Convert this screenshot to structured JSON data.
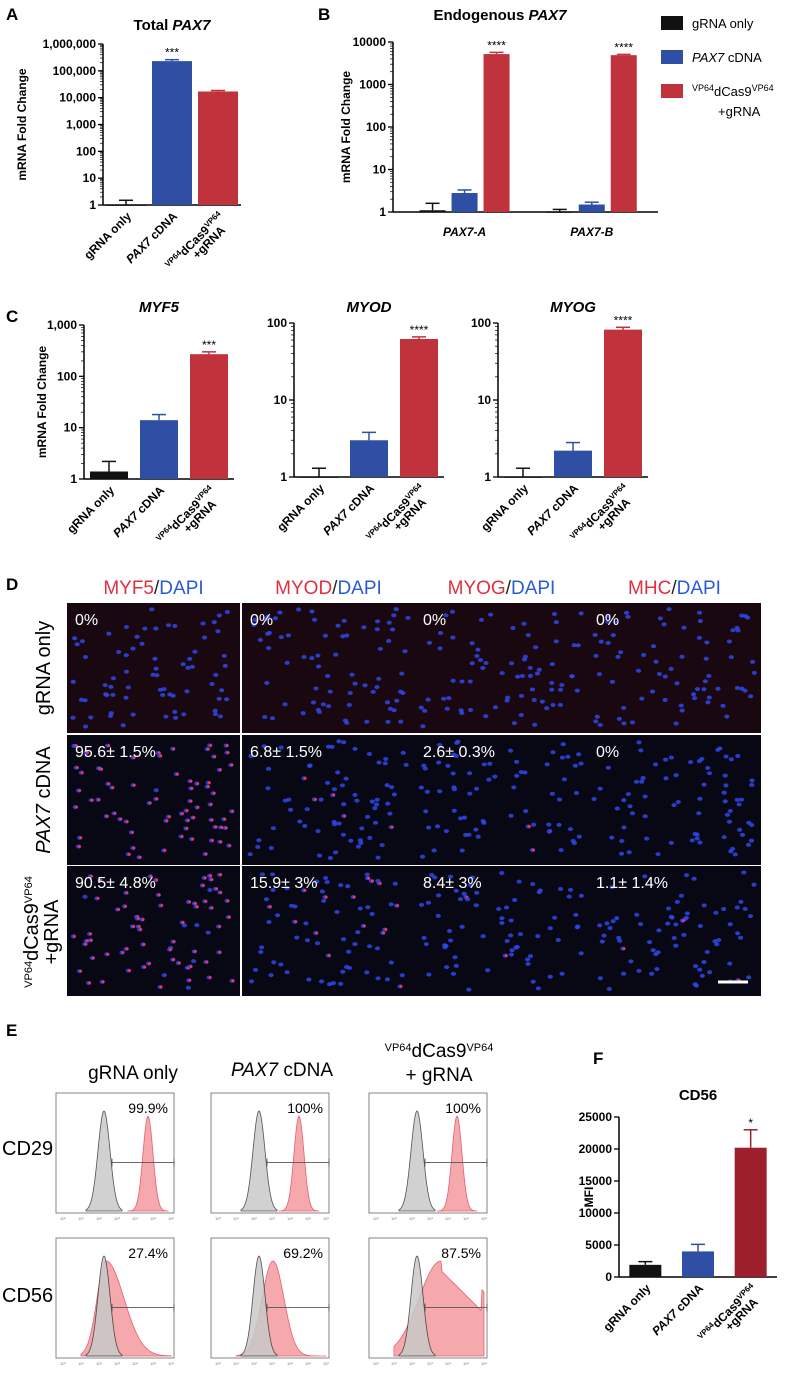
{
  "panel_labels": {
    "a": "A",
    "b": "B",
    "c": "C",
    "d": "D",
    "e": "E",
    "f": "F"
  },
  "legend": {
    "items": [
      {
        "label": "gRNA only",
        "color": "#111111"
      },
      {
        "label": "PAX7 cDNA",
        "color": "#2e4fa3"
      },
      {
        "label": "VP64dCas9VP64 +gRNA",
        "color": "#c0333c"
      }
    ]
  },
  "groups": [
    "gRNA only",
    "PAX7 cDNA",
    "VP64dCas9VP64 +gRNA"
  ],
  "colors": {
    "grna": "#111111",
    "cdna": "#2e4fa3",
    "vp64": "#c0333c",
    "vp64_dark": "#9e1f2c",
    "micro_red": "#e03040",
    "micro_blue": "#2a5bd7"
  },
  "chart_data": [
    {
      "id": "A",
      "type": "bar",
      "title": "Total PAX7",
      "ylabel": "mRNA Fold Change",
      "yscale": "log",
      "ylim": [
        1,
        1000000
      ],
      "yticks": [
        "1",
        "10",
        "100",
        "1,000",
        "10,000",
        "100,000",
        "1,000,000"
      ],
      "categories": [
        "gRNA only",
        "PAX7 cDNA",
        "VP64dCas9VP64 +gRNA"
      ],
      "values": [
        1,
        230000,
        17000
      ],
      "errors": [
        1.5,
        260000,
        18500
      ],
      "significance": [
        "",
        "***",
        ""
      ]
    },
    {
      "id": "B",
      "type": "bar",
      "title": "Endogenous PAX7",
      "ylabel": "mRNA Fold Change",
      "yscale": "log",
      "ylim": [
        1,
        10000
      ],
      "yticks": [
        "1",
        "10",
        "100",
        "1000",
        "10000"
      ],
      "categories": [
        "PAX7-A",
        "PAX7-B"
      ],
      "series": [
        {
          "name": "gRNA only",
          "values": [
            1.1,
            1.0
          ],
          "errors": [
            1.6,
            1.15
          ]
        },
        {
          "name": "PAX7 cDNA",
          "values": [
            2.8,
            1.5
          ],
          "errors": [
            3.3,
            1.7
          ]
        },
        {
          "name": "VP64dCas9VP64 +gRNA",
          "values": [
            5200,
            4900
          ],
          "errors": [
            5700,
            5100
          ]
        }
      ],
      "significance": [
        "****",
        "****"
      ]
    },
    {
      "id": "C1",
      "type": "bar",
      "title": "MYF5",
      "ylabel": "mRNA Fold Change",
      "yscale": "log",
      "ylim": [
        1,
        1000
      ],
      "yticks": [
        "1",
        "10",
        "100",
        "1,000"
      ],
      "categories": [
        "gRNA only",
        "PAX7 cDNA",
        "VP64dCas9VP64 +gRNA"
      ],
      "values": [
        1.4,
        14,
        270
      ],
      "errors": [
        2.2,
        18,
        300
      ],
      "significance": [
        "",
        "",
        "***"
      ]
    },
    {
      "id": "C2",
      "type": "bar",
      "title": "MYOD",
      "yscale": "log",
      "ylim": [
        1,
        100
      ],
      "yticks": [
        "1",
        "10",
        "100"
      ],
      "categories": [
        "gRNA only",
        "PAX7 cDNA",
        "VP64dCas9VP64 +gRNA"
      ],
      "values": [
        1.0,
        3.0,
        62
      ],
      "errors": [
        1.3,
        3.8,
        66
      ],
      "significance": [
        "",
        "",
        "****"
      ]
    },
    {
      "id": "C3",
      "type": "bar",
      "title": "MYOG",
      "yscale": "log",
      "ylim": [
        1,
        100
      ],
      "yticks": [
        "1",
        "10",
        "100"
      ],
      "categories": [
        "gRNA only",
        "PAX7 cDNA",
        "VP64dCas9VP64 +gRNA"
      ],
      "values": [
        1.0,
        2.2,
        82
      ],
      "errors": [
        1.3,
        2.8,
        88
      ],
      "significance": [
        "",
        "",
        "****"
      ]
    },
    {
      "id": "F",
      "type": "bar",
      "title": "CD56",
      "ylabel": "MFI",
      "yscale": "linear",
      "ylim": [
        0,
        25000
      ],
      "yticks": [
        "0",
        "5000",
        "10000",
        "15000",
        "20000",
        "25000"
      ],
      "categories": [
        "gRNA only",
        "PAX7 cDNA",
        "VP64dCas9VP64 +gRNA"
      ],
      "values": [
        1900,
        4000,
        20200
      ],
      "errors": [
        2400,
        5100,
        23000
      ],
      "significance": [
        "",
        "",
        "*"
      ]
    }
  ],
  "microscopy": {
    "columns": [
      {
        "marker": "MYF5",
        "sep": "/",
        "stain": "DAPI"
      },
      {
        "marker": "MYOD",
        "sep": "/",
        "stain": "DAPI"
      },
      {
        "marker": "MYOG",
        "sep": "/",
        "stain": "DAPI"
      },
      {
        "marker": "MHC",
        "sep": "/",
        "stain": "DAPI"
      }
    ],
    "rows": [
      "gRNA only",
      "PAX7 cDNA",
      "VP64dCas9VP64 +gRNA"
    ],
    "percentages": [
      [
        "0%",
        "0%",
        "0%",
        "0%"
      ],
      [
        "95.6± 1.5%",
        "6.8± 1.5%",
        "2.6± 0.3%",
        "0%"
      ],
      [
        "90.5± 4.8%",
        "15.9± 3%",
        "8.4± 3%",
        "1.1± 1.4%"
      ]
    ],
    "red_fraction": [
      [
        0,
        0,
        0,
        0
      ],
      [
        0.956,
        0.068,
        0.026,
        0
      ],
      [
        0.905,
        0.159,
        0.084,
        0.011
      ]
    ]
  },
  "flow": {
    "columns": [
      "gRNA only",
      "PAX7 cDNA",
      "VP64dCas9VP64 + gRNA"
    ],
    "rows": [
      "CD29",
      "CD56"
    ],
    "percentages": [
      [
        "99.9%",
        "100%",
        "100%"
      ],
      [
        "27.4%",
        "69.2%",
        "87.5%"
      ]
    ],
    "axis_ticks": [
      "10⁰",
      "10¹",
      "10²",
      "10³",
      "10⁴",
      "10⁵",
      "10⁶"
    ]
  }
}
